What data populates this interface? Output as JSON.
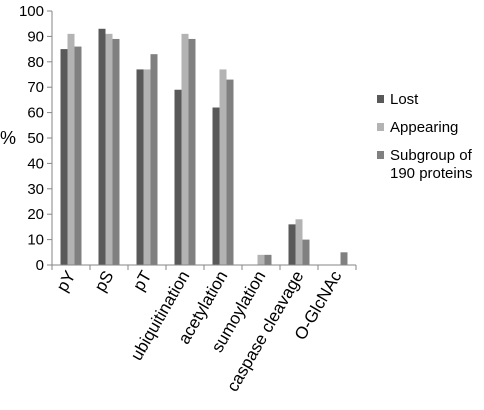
{
  "chart_data": {
    "type": "bar",
    "ylabel": "%",
    "ylim": [
      0,
      100
    ],
    "yticks": [
      0,
      10,
      20,
      30,
      40,
      50,
      60,
      70,
      80,
      90,
      100
    ],
    "categories": [
      "pY",
      "pS",
      "pT",
      "ubiquitination",
      "acetylation",
      "sumoylation",
      "caspase cleavage",
      "O-GlcNAc"
    ],
    "series": [
      {
        "name": "Lost",
        "color": "#595959",
        "values": [
          85,
          93,
          77,
          69,
          62,
          0,
          16,
          0
        ]
      },
      {
        "name": "Appearing",
        "color": "#b3b3b3",
        "values": [
          91,
          91,
          77,
          91,
          77,
          4,
          18,
          0
        ]
      },
      {
        "name": "Subgroup of 190 proteins",
        "legend_lines": [
          "Subgroup of",
          "190 proteins"
        ],
        "color": "#808080",
        "values": [
          86,
          89,
          83,
          89,
          73,
          4,
          10,
          5
        ]
      }
    ],
    "legend_position": "right",
    "grid": false
  }
}
